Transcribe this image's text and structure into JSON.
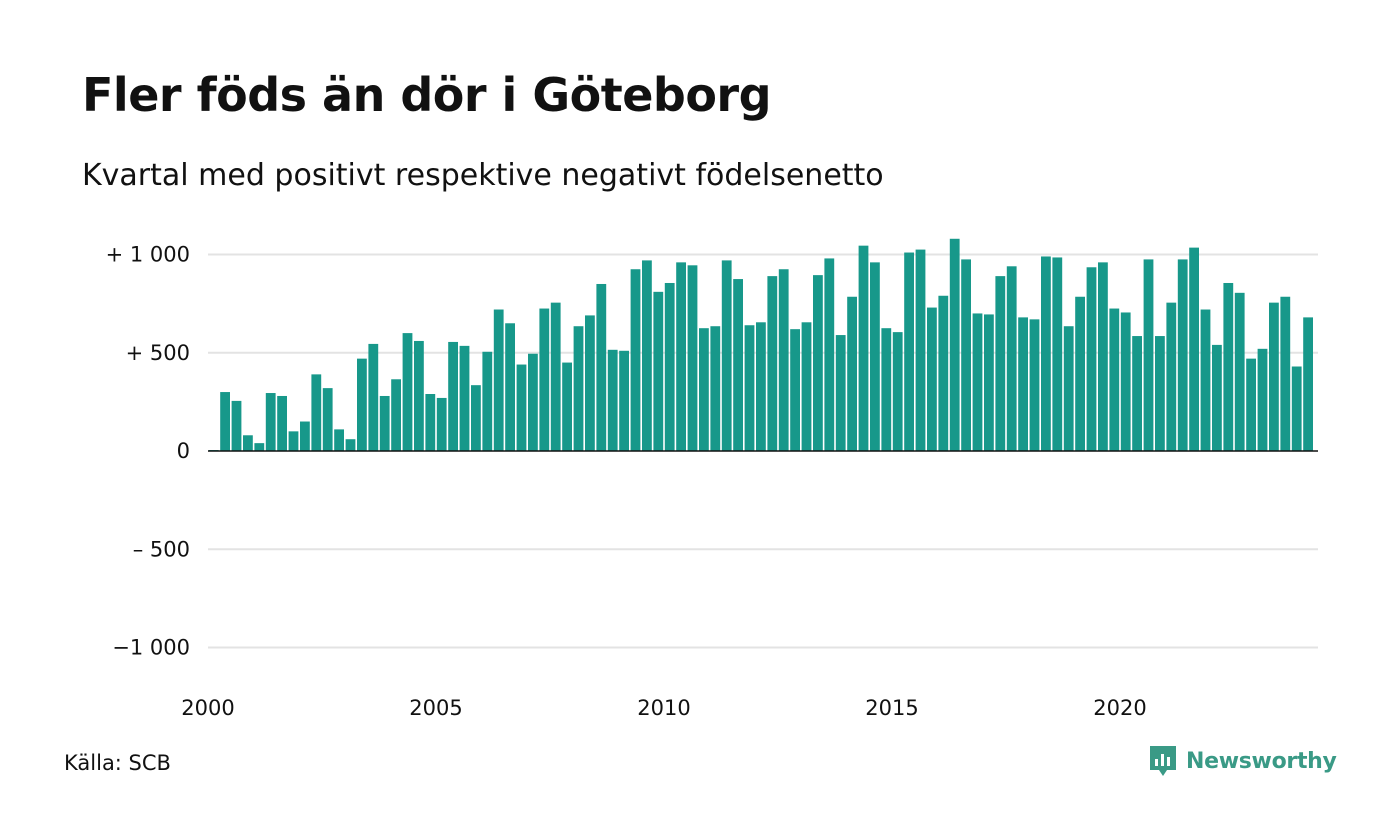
{
  "header": {
    "title": "Fler föds än dör i Göteborg",
    "subtitle": "Kvartal med positivt respektive negativt födelsenetto"
  },
  "footer": {
    "source": "Källa: SCB",
    "brand": "Newsworthy"
  },
  "colors": {
    "bar": "#17988a",
    "grid": "#e3e3e3",
    "zero": "#111111",
    "brand": "#3a9a86"
  },
  "chart_data": {
    "type": "bar",
    "title": "Fler föds än dör i Göteborg",
    "subtitle": "Kvartal med positivt respektive negativt födelsenetto",
    "ylim": [
      -1000,
      1000
    ],
    "yticks": [
      {
        "value": 1000,
        "label": "+ 1 000"
      },
      {
        "value": 500,
        "label": "+   500"
      },
      {
        "value": 0,
        "label": "0"
      },
      {
        "value": -500,
        "label": "–  500"
      },
      {
        "value": -1000,
        "label": "−1 000"
      }
    ],
    "xticks": [
      {
        "value": 2000,
        "label": "2000"
      },
      {
        "value": 2005,
        "label": "2005"
      },
      {
        "value": 2010,
        "label": "2010"
      },
      {
        "value": 2015,
        "label": "2015"
      },
      {
        "value": 2020,
        "label": "2020"
      }
    ],
    "grid": true,
    "start": "2000 Q1",
    "values": [
      5,
      300,
      255,
      80,
      40,
      295,
      280,
      100,
      150,
      390,
      320,
      110,
      60,
      470,
      545,
      280,
      365,
      600,
      560,
      290,
      270,
      555,
      535,
      335,
      505,
      720,
      650,
      440,
      495,
      725,
      755,
      450,
      635,
      690,
      850,
      515,
      510,
      925,
      970,
      810,
      855,
      960,
      945,
      625,
      635,
      970,
      875,
      640,
      655,
      890,
      925,
      620,
      655,
      895,
      980,
      590,
      785,
      1045,
      960,
      625,
      605,
      1010,
      1025,
      730,
      790,
      1080,
      975,
      700,
      695,
      890,
      940,
      680,
      670,
      990,
      985,
      635,
      785,
      935,
      960,
      725,
      705,
      585,
      975,
      585,
      755,
      975,
      1035,
      720,
      540,
      855,
      805,
      470,
      520,
      755,
      785,
      430,
      680
    ]
  }
}
